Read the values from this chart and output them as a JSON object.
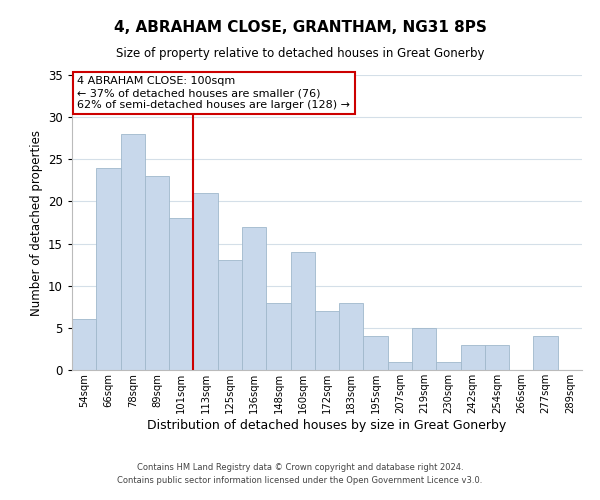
{
  "title": "4, ABRAHAM CLOSE, GRANTHAM, NG31 8PS",
  "subtitle": "Size of property relative to detached houses in Great Gonerby",
  "xlabel": "Distribution of detached houses by size in Great Gonerby",
  "ylabel": "Number of detached properties",
  "bin_labels": [
    "54sqm",
    "66sqm",
    "78sqm",
    "89sqm",
    "101sqm",
    "113sqm",
    "125sqm",
    "136sqm",
    "148sqm",
    "160sqm",
    "172sqm",
    "183sqm",
    "195sqm",
    "207sqm",
    "219sqm",
    "230sqm",
    "242sqm",
    "254sqm",
    "266sqm",
    "277sqm",
    "289sqm"
  ],
  "bar_heights": [
    6,
    24,
    28,
    23,
    18,
    21,
    13,
    17,
    8,
    14,
    7,
    8,
    4,
    1,
    5,
    1,
    3,
    3,
    0,
    4,
    0
  ],
  "bar_color": "#c8d8eb",
  "bar_edge_color": "#a0b8cc",
  "red_line_after_bar": 4,
  "highlight_color": "#cc0000",
  "ylim": [
    0,
    35
  ],
  "yticks": [
    0,
    5,
    10,
    15,
    20,
    25,
    30,
    35
  ],
  "annotation_title": "4 ABRAHAM CLOSE: 100sqm",
  "annotation_line1": "← 37% of detached houses are smaller (76)",
  "annotation_line2": "62% of semi-detached houses are larger (128) →",
  "footer_line1": "Contains HM Land Registry data © Crown copyright and database right 2024.",
  "footer_line2": "Contains public sector information licensed under the Open Government Licence v3.0.",
  "annotation_box_color": "#ffffff",
  "annotation_box_edge": "#cc0000",
  "background_color": "#ffffff",
  "grid_color": "#d4dfe8"
}
